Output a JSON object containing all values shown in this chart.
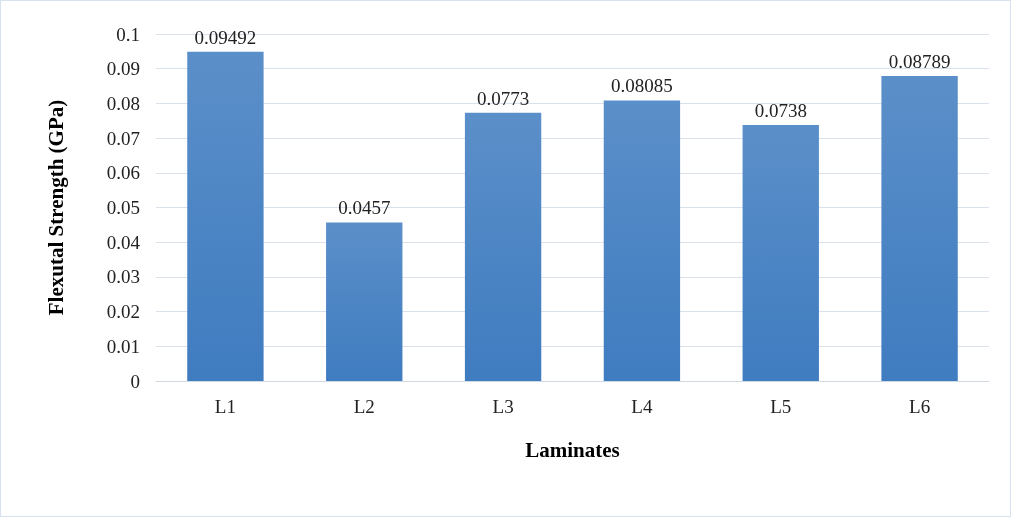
{
  "chart_data": {
    "type": "bar",
    "xlabel": "Laminates",
    "ylabel": "Flexutal Strength (GPa)",
    "categories": [
      "L1",
      "L2",
      "L3",
      "L4",
      "L5",
      "L6"
    ],
    "values": [
      0.09492,
      0.0457,
      0.0773,
      0.08085,
      0.0738,
      0.08789
    ],
    "color": "#3f7cc0",
    "ylim": [
      0,
      0.1
    ],
    "yticks": [
      0,
      0.01,
      0.02,
      0.03,
      0.04,
      0.05,
      0.06,
      0.07,
      0.08,
      0.09,
      0.1
    ],
    "grid": "y",
    "data_labels": true
  }
}
